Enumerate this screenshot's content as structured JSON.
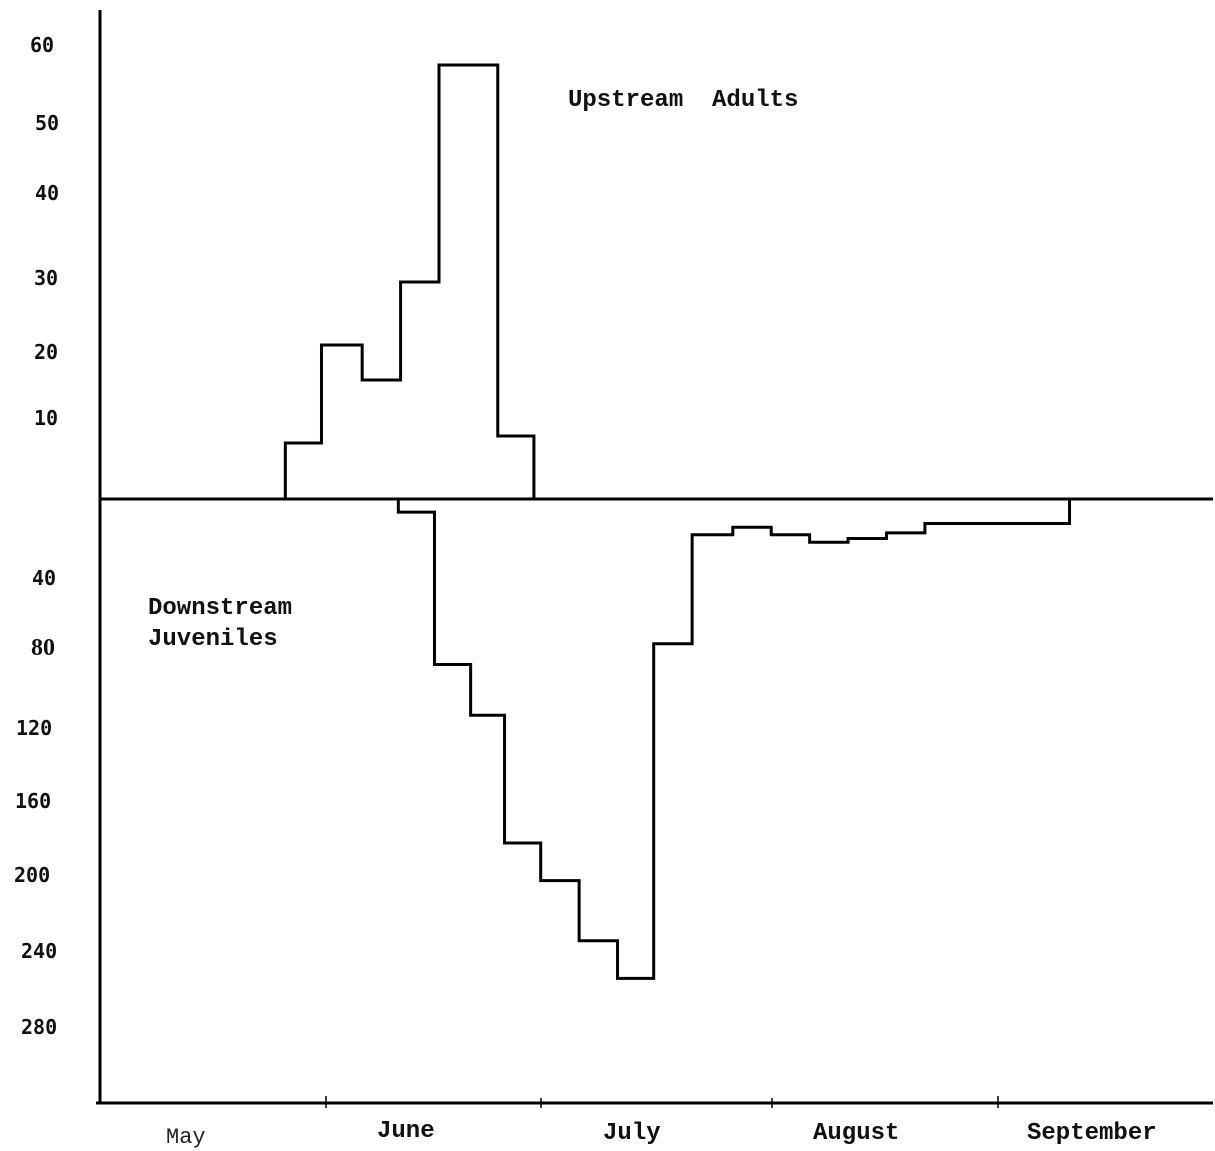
{
  "chart_data": {
    "type": "line",
    "step": true,
    "annotations": [
      "Upstream  Adults",
      "Downstream",
      "Juveniles"
    ],
    "x_categories": [
      "May",
      "June",
      "July",
      "August",
      "September"
    ],
    "upper_axis": {
      "tick_labels": [
        "60",
        "50",
        "40",
        "30",
        "20",
        "10"
      ],
      "ylim": [
        0,
        62
      ]
    },
    "lower_axis": {
      "tick_labels": [
        "40",
        "80",
        "120",
        "160",
        "200",
        "240",
        "280"
      ],
      "ylim": [
        0,
        310
      ]
    },
    "series": [
      {
        "annotation_index": 0,
        "direction": "up",
        "x": [
          0.82,
          0.98,
          1.16,
          1.33,
          1.5,
          1.62,
          1.76
        ],
        "values": [
          8,
          22,
          17,
          31,
          62,
          62,
          9
        ],
        "end_x": 1.92
      },
      {
        "annotation_index": 1,
        "direction": "down",
        "x": [
          1.32,
          1.48,
          1.64,
          1.79,
          1.95,
          2.12,
          2.29,
          2.45,
          2.62,
          2.8,
          2.97,
          3.14,
          3.31,
          3.48,
          3.65,
          3.82
        ],
        "values": [
          7,
          88,
          115,
          183,
          203,
          235,
          255,
          77,
          19,
          15,
          19,
          23,
          21,
          18,
          13,
          13
        ],
        "end_x": 4.29
      }
    ]
  }
}
